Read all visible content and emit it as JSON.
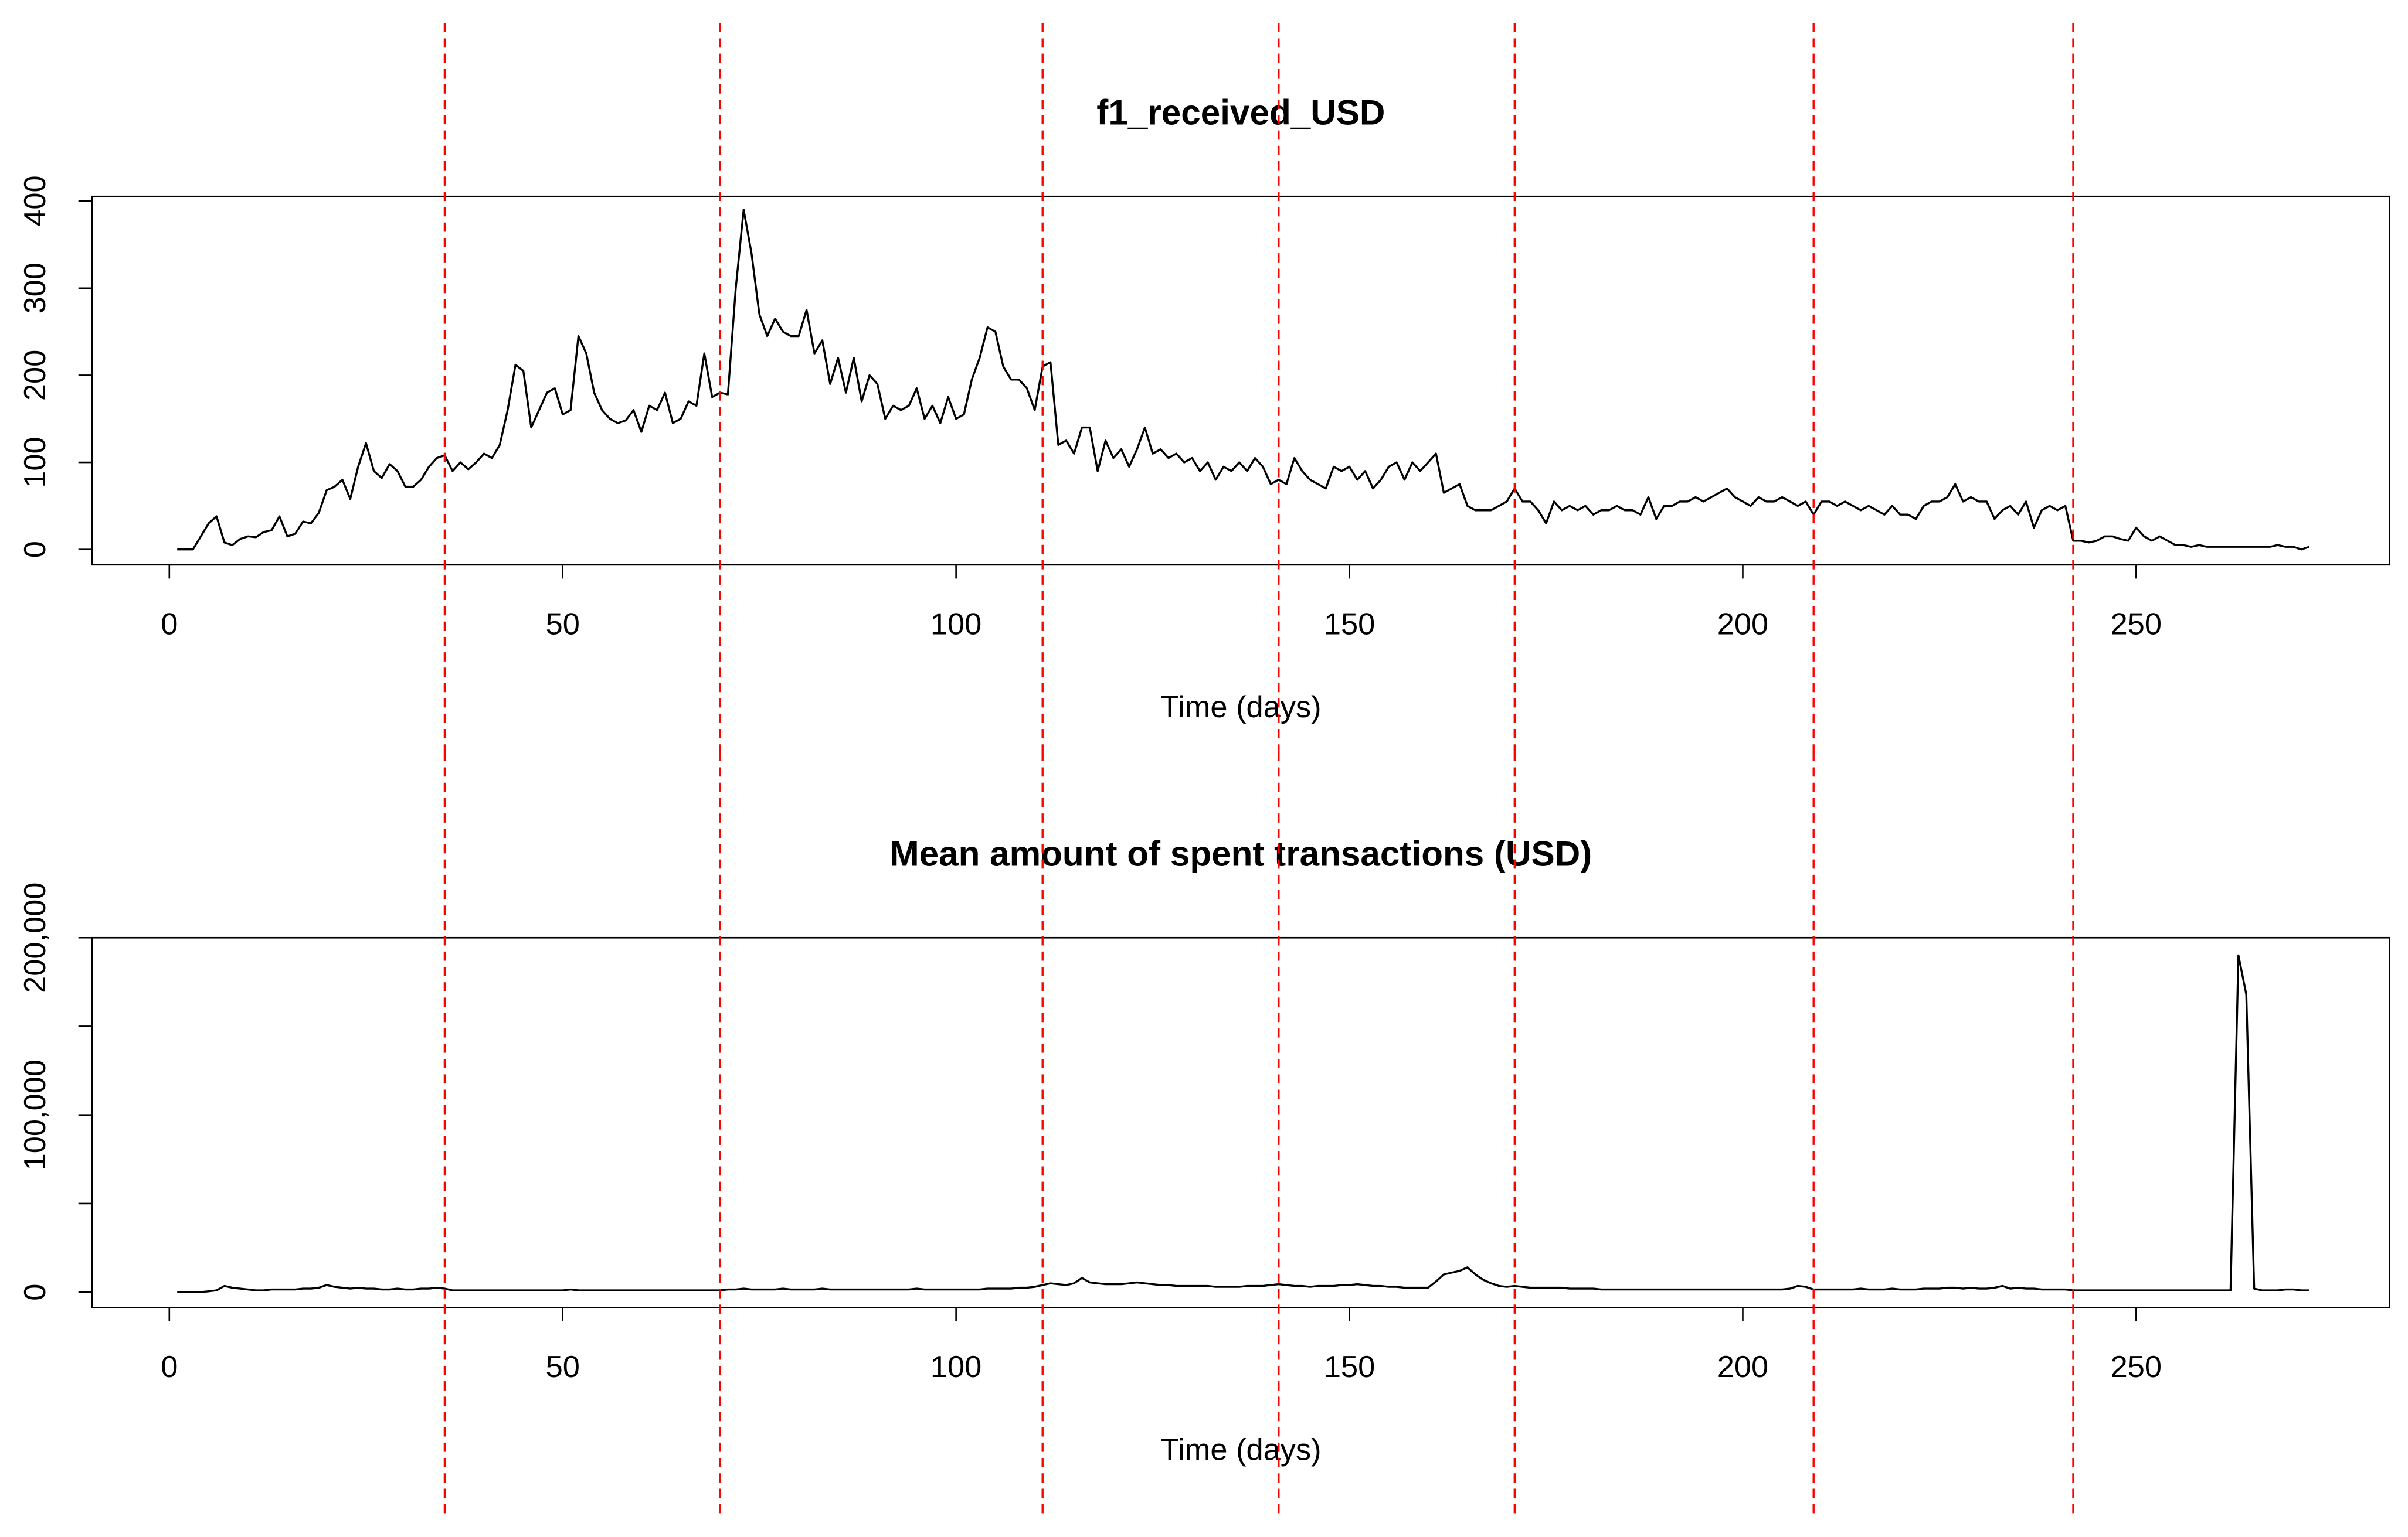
{
  "chart_data": [
    {
      "type": "line",
      "title": "f1_received_USD",
      "x_label": "Time (days)",
      "xlim": [
        -9.8,
        282.2
      ],
      "xticks": [
        0,
        50,
        100,
        150,
        200,
        250
      ],
      "ylim": [
        -17.6,
        405.3
      ],
      "yticks": [
        0,
        100,
        200,
        300,
        400
      ],
      "vlines": [
        35,
        70,
        111,
        141,
        171,
        209,
        242
      ],
      "vline_color": "#ff0000",
      "x": [
        1,
        2,
        3,
        4,
        5,
        6,
        7,
        8,
        9,
        10,
        11,
        12,
        13,
        14,
        15,
        16,
        17,
        18,
        19,
        20,
        21,
        22,
        23,
        24,
        25,
        26,
        27,
        28,
        29,
        30,
        31,
        32,
        33,
        34,
        35,
        36,
        37,
        38,
        39,
        40,
        41,
        42,
        43,
        44,
        45,
        46,
        47,
        48,
        49,
        50,
        51,
        52,
        53,
        54,
        55,
        56,
        57,
        58,
        59,
        60,
        61,
        62,
        63,
        64,
        65,
        66,
        67,
        68,
        69,
        70,
        71,
        72,
        73,
        74,
        75,
        76,
        77,
        78,
        79,
        80,
        81,
        82,
        83,
        84,
        85,
        86,
        87,
        88,
        89,
        90,
        91,
        92,
        93,
        94,
        95,
        96,
        97,
        98,
        99,
        100,
        101,
        102,
        103,
        104,
        105,
        106,
        107,
        108,
        109,
        110,
        111,
        112,
        113,
        114,
        115,
        116,
        117,
        118,
        119,
        120,
        121,
        122,
        123,
        124,
        125,
        126,
        127,
        128,
        129,
        130,
        131,
        132,
        133,
        134,
        135,
        136,
        137,
        138,
        139,
        140,
        141,
        142,
        143,
        144,
        145,
        146,
        147,
        148,
        149,
        150,
        151,
        152,
        153,
        154,
        155,
        156,
        157,
        158,
        159,
        160,
        161,
        162,
        163,
        164,
        165,
        166,
        167,
        168,
        169,
        170,
        171,
        172,
        173,
        174,
        175,
        176,
        177,
        178,
        179,
        180,
        181,
        182,
        183,
        184,
        185,
        186,
        187,
        188,
        189,
        190,
        191,
        192,
        193,
        194,
        195,
        196,
        197,
        198,
        199,
        200,
        201,
        202,
        203,
        204,
        205,
        206,
        207,
        208,
        209,
        210,
        211,
        212,
        213,
        214,
        215,
        216,
        217,
        218,
        219,
        220,
        221,
        222,
        223,
        224,
        225,
        226,
        227,
        228,
        229,
        230,
        231,
        232,
        233,
        234,
        235,
        236,
        237,
        238,
        239,
        240,
        241,
        242,
        243,
        244,
        245,
        246,
        247,
        248,
        249,
        250,
        251,
        252,
        253,
        254,
        255,
        256,
        257,
        258,
        259,
        260,
        261,
        262,
        263,
        264,
        265,
        266,
        267,
        268,
        269,
        270,
        271,
        272
      ],
      "series": [
        {
          "color": "#000000",
          "values": [
            0,
            0,
            0,
            15,
            30,
            38,
            8,
            5,
            12,
            15,
            14,
            20,
            22,
            38,
            15,
            18,
            32,
            30,
            42,
            68,
            72,
            80,
            58,
            95,
            122,
            90,
            82,
            98,
            90,
            72,
            72,
            80,
            95,
            105,
            108,
            90,
            100,
            92,
            100,
            110,
            105,
            120,
            160,
            212,
            205,
            140,
            160,
            180,
            185,
            155,
            160,
            245,
            225,
            180,
            160,
            150,
            145,
            148,
            160,
            135,
            165,
            160,
            180,
            145,
            150,
            170,
            165,
            225,
            175,
            180,
            178,
            300,
            390,
            340,
            270,
            245,
            265,
            250,
            245,
            245,
            275,
            225,
            240,
            190,
            220,
            180,
            220,
            170,
            200,
            190,
            150,
            165,
            160,
            165,
            185,
            150,
            165,
            145,
            175,
            150,
            155,
            195,
            220,
            255,
            250,
            210,
            195,
            195,
            185,
            160,
            210,
            215,
            120,
            125,
            110,
            140,
            140,
            90,
            125,
            105,
            115,
            95,
            115,
            140,
            110,
            115,
            105,
            110,
            100,
            105,
            90,
            100,
            80,
            95,
            90,
            100,
            90,
            105,
            95,
            75,
            80,
            75,
            105,
            90,
            80,
            75,
            70,
            95,
            90,
            95,
            80,
            90,
            70,
            80,
            95,
            100,
            80,
            100,
            90,
            100,
            110,
            65,
            70,
            75,
            50,
            45,
            45,
            45,
            50,
            55,
            70,
            55,
            55,
            45,
            30,
            55,
            45,
            50,
            45,
            50,
            40,
            45,
            45,
            50,
            45,
            45,
            40,
            60,
            35,
            50,
            50,
            55,
            55,
            60,
            55,
            60,
            65,
            70,
            60,
            55,
            50,
            60,
            55,
            55,
            60,
            55,
            50,
            55,
            40,
            55,
            55,
            50,
            55,
            50,
            45,
            50,
            45,
            40,
            50,
            40,
            40,
            35,
            50,
            55,
            55,
            60,
            75,
            55,
            60,
            55,
            55,
            35,
            45,
            50,
            40,
            55,
            25,
            45,
            50,
            45,
            50,
            10,
            10,
            8,
            10,
            15,
            15,
            12,
            10,
            25,
            15,
            10,
            15,
            10,
            5,
            5,
            3,
            5,
            3,
            3,
            3,
            3,
            3,
            3,
            3,
            3,
            3,
            5,
            3,
            3,
            0,
            3
          ]
        }
      ]
    },
    {
      "type": "line",
      "title": "Mean amount of spent transactions (USD)",
      "x_label": "Time (days)",
      "xlim": [
        -9.8,
        282.2
      ],
      "xticks": [
        0,
        50,
        100,
        150,
        200,
        250
      ],
      "ylim": [
        -8700,
        200000
      ],
      "yticks": [
        0,
        {
          "value": 50000,
          "label": null
        },
        {
          "value": 100000,
          "label": "100,000"
        },
        {
          "value": 150000,
          "label": null
        },
        {
          "value": 200000,
          "label": "200,000"
        }
      ],
      "vlines": [
        35,
        70,
        111,
        141,
        171,
        209,
        242
      ],
      "vline_color": "#ff0000",
      "x": [
        1,
        2,
        3,
        4,
        5,
        6,
        7,
        8,
        9,
        10,
        11,
        12,
        13,
        14,
        15,
        16,
        17,
        18,
        19,
        20,
        21,
        22,
        23,
        24,
        25,
        26,
        27,
        28,
        29,
        30,
        31,
        32,
        33,
        34,
        35,
        36,
        37,
        38,
        39,
        40,
        41,
        42,
        43,
        44,
        45,
        46,
        47,
        48,
        49,
        50,
        51,
        52,
        53,
        54,
        55,
        56,
        57,
        58,
        59,
        60,
        61,
        62,
        63,
        64,
        65,
        66,
        67,
        68,
        69,
        70,
        71,
        72,
        73,
        74,
        75,
        76,
        77,
        78,
        79,
        80,
        81,
        82,
        83,
        84,
        85,
        86,
        87,
        88,
        89,
        90,
        91,
        92,
        93,
        94,
        95,
        96,
        97,
        98,
        99,
        100,
        101,
        102,
        103,
        104,
        105,
        106,
        107,
        108,
        109,
        110,
        111,
        112,
        113,
        114,
        115,
        116,
        117,
        118,
        119,
        120,
        121,
        122,
        123,
        124,
        125,
        126,
        127,
        128,
        129,
        130,
        131,
        132,
        133,
        134,
        135,
        136,
        137,
        138,
        139,
        140,
        141,
        142,
        143,
        144,
        145,
        146,
        147,
        148,
        149,
        150,
        151,
        152,
        153,
        154,
        155,
        156,
        157,
        158,
        159,
        160,
        161,
        162,
        163,
        164,
        165,
        166,
        167,
        168,
        169,
        170,
        171,
        172,
        173,
        174,
        175,
        176,
        177,
        178,
        179,
        180,
        181,
        182,
        183,
        184,
        185,
        186,
        187,
        188,
        189,
        190,
        191,
        192,
        193,
        194,
        195,
        196,
        197,
        198,
        199,
        200,
        201,
        202,
        203,
        204,
        205,
        206,
        207,
        208,
        209,
        210,
        211,
        212,
        213,
        214,
        215,
        216,
        217,
        218,
        219,
        220,
        221,
        222,
        223,
        224,
        225,
        226,
        227,
        228,
        229,
        230,
        231,
        232,
        233,
        234,
        235,
        236,
        237,
        238,
        239,
        240,
        241,
        242,
        243,
        244,
        245,
        246,
        247,
        248,
        249,
        250,
        251,
        252,
        253,
        254,
        255,
        256,
        257,
        258,
        259,
        260,
        261,
        262,
        263,
        264,
        265,
        266,
        267,
        268,
        269,
        270,
        271,
        272
      ],
      "series": [
        {
          "color": "#000000",
          "values": [
            0,
            0,
            0,
            0,
            500,
            1000,
            3500,
            2500,
            2000,
            1500,
            1000,
            1000,
            1500,
            1500,
            1500,
            1500,
            2000,
            2000,
            2500,
            4000,
            3000,
            2500,
            2000,
            2500,
            2000,
            2000,
            1500,
            1500,
            2000,
            1500,
            1500,
            2000,
            2000,
            2500,
            2000,
            1000,
            1000,
            1000,
            1000,
            1000,
            1000,
            1000,
            1000,
            1000,
            1000,
            1000,
            1000,
            1000,
            1000,
            1000,
            1500,
            1000,
            1000,
            1000,
            1000,
            1000,
            1000,
            1000,
            1000,
            1000,
            1000,
            1000,
            1000,
            1000,
            1000,
            1000,
            1000,
            1000,
            1000,
            1000,
            1500,
            1500,
            2000,
            1500,
            1500,
            1500,
            1500,
            2000,
            1500,
            1500,
            1500,
            1500,
            2000,
            1500,
            1500,
            1500,
            1500,
            1500,
            1500,
            1500,
            1500,
            1500,
            1500,
            1500,
            2000,
            1500,
            1500,
            1500,
            1500,
            1500,
            1500,
            1500,
            1500,
            2000,
            2000,
            2000,
            2000,
            2500,
            2500,
            3000,
            4000,
            5000,
            4500,
            4000,
            5000,
            8000,
            5500,
            5000,
            4500,
            4500,
            4500,
            5000,
            5500,
            5000,
            4500,
            4000,
            4000,
            3500,
            3500,
            3500,
            3500,
            3500,
            3000,
            3000,
            3000,
            3000,
            3500,
            3500,
            3500,
            4000,
            4500,
            4000,
            3500,
            3500,
            3000,
            3500,
            3500,
            3500,
            4000,
            4000,
            4500,
            4000,
            3500,
            3500,
            3000,
            3000,
            2500,
            2500,
            2500,
            2500,
            6000,
            10000,
            11000,
            12000,
            14000,
            10000,
            7000,
            5000,
            3500,
            3000,
            3500,
            3000,
            2500,
            2500,
            2500,
            2500,
            2500,
            2000,
            2000,
            2000,
            2000,
            1500,
            1500,
            1500,
            1500,
            1500,
            1500,
            1500,
            1500,
            1500,
            1500,
            1500,
            1500,
            1500,
            1500,
            1500,
            1500,
            1500,
            1500,
            1500,
            1500,
            1500,
            1500,
            1500,
            1500,
            2000,
            3500,
            3000,
            1500,
            1500,
            1500,
            1500,
            1500,
            1500,
            2000,
            1500,
            1500,
            1500,
            2000,
            1500,
            1500,
            1500,
            2000,
            2000,
            2000,
            2500,
            2500,
            2000,
            2500,
            2000,
            2000,
            2500,
            3500,
            2000,
            2500,
            2000,
            2000,
            1500,
            1500,
            1500,
            1500,
            1000,
            1000,
            1000,
            1000,
            1000,
            1000,
            1000,
            1000,
            1000,
            1000,
            1000,
            1000,
            1000,
            1000,
            1000,
            1000,
            1000,
            1000,
            1000,
            1000,
            1000,
            190000,
            168000,
            2000,
            1000,
            1000,
            1000,
            1500,
            1500,
            1000,
            1000
          ]
        }
      ]
    }
  ]
}
